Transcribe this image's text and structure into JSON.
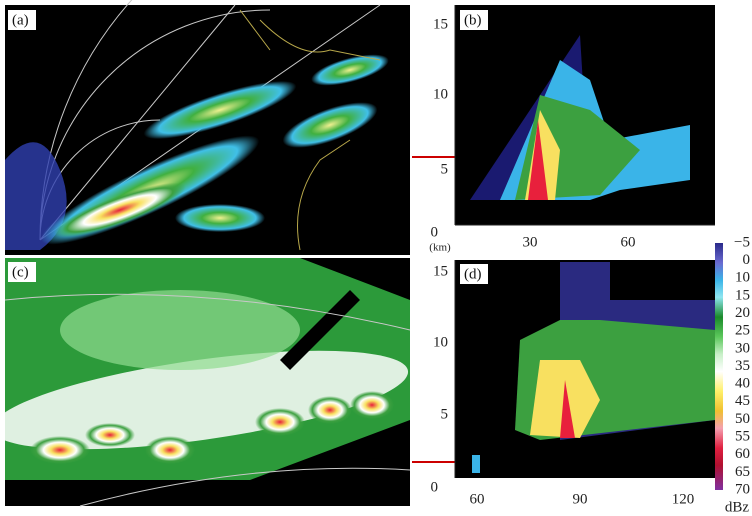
{
  "panels": [
    {
      "label": "(a)"
    },
    {
      "label": "(b)",
      "yticks": [
        "15",
        "10",
        "5",
        "0"
      ],
      "unit": "(km)",
      "xticks": [
        "30",
        "60"
      ]
    },
    {
      "label": "(c)"
    },
    {
      "label": "(d)",
      "yticks": [
        "15",
        "10",
        "5",
        "0"
      ],
      "xticks": [
        "60",
        "90",
        "120"
      ]
    }
  ],
  "colorbar": {
    "labels": [
      "−5",
      "0",
      "10",
      "15",
      "20",
      "25",
      "30",
      "35",
      "40",
      "45",
      "50",
      "55",
      "60",
      "65",
      "70"
    ],
    "unit": "dBz"
  }
}
